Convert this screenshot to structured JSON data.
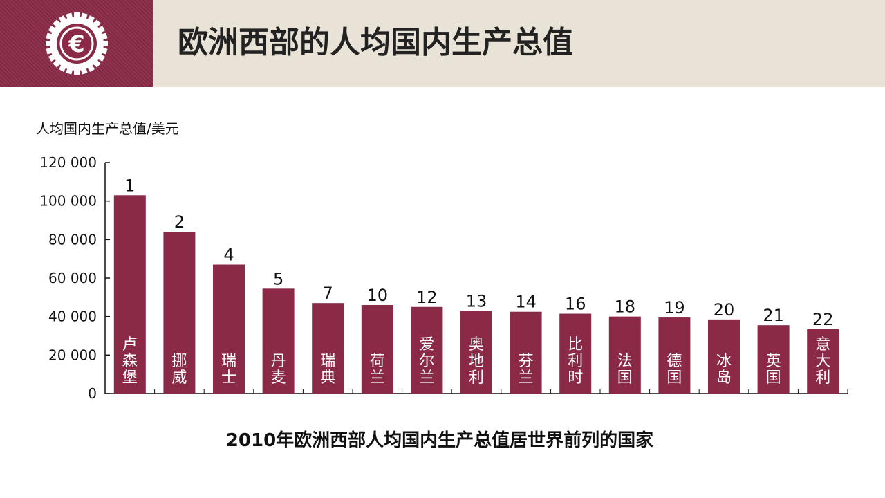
{
  "header": {
    "title": "欧洲西部的人均国内生产总值",
    "logo_icon": "euro-coin-icon",
    "logo_symbol": "€"
  },
  "colors": {
    "bar": "#8a2a47",
    "header_bg": "#e8e3d6",
    "logo_bg": "#8a2a47"
  },
  "chart_data": {
    "type": "bar",
    "ylabel": "人均国内生产总值/美元",
    "ylim": [
      0,
      120000
    ],
    "yticks": [
      0,
      20000,
      40000,
      60000,
      80000,
      100000,
      120000
    ],
    "ytick_labels": [
      "0",
      "20 000",
      "40 000",
      "60 000",
      "80 000",
      "100 000",
      "120 000"
    ],
    "categories": [
      "卢森堡",
      "挪威",
      "瑞士",
      "丹麦",
      "瑞典",
      "荷兰",
      "爱尔兰",
      "奥地利",
      "芬兰",
      "比利时",
      "法国",
      "德国",
      "冰岛",
      "英国",
      "意大利"
    ],
    "values": [
      103000,
      84000,
      67000,
      54500,
      47000,
      46000,
      45000,
      43000,
      42500,
      41500,
      40000,
      39500,
      38500,
      35500,
      33500
    ],
    "ranks": [
      "1",
      "2",
      "4",
      "5",
      "7",
      "10",
      "12",
      "13",
      "14",
      "16",
      "18",
      "19",
      "20",
      "21",
      "22"
    ],
    "grid": false,
    "legend": "none"
  },
  "caption": "2010年欧洲西部人均国内生产总值居世界前列的国家"
}
